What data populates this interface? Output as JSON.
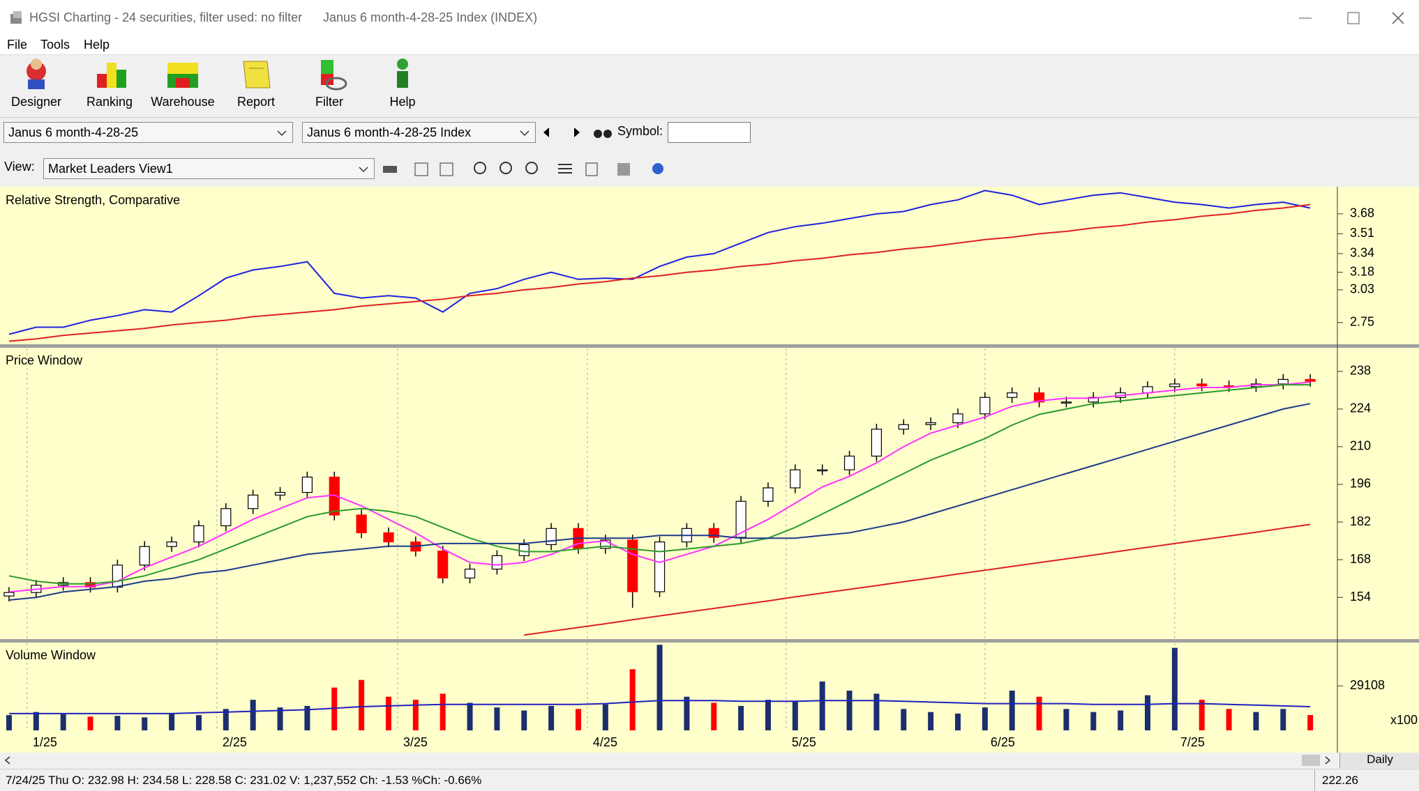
{
  "window": {
    "title": "HGSI Charting - 24 securities, filter used: no filter",
    "document": "Janus 6 month-4-28-25 Index (INDEX)"
  },
  "menu": [
    "File",
    "Tools",
    "Help"
  ],
  "toolbar": [
    "Designer",
    "Ranking",
    "Warehouse",
    "Report",
    "Filter",
    "Help"
  ],
  "selectors": {
    "list": "Janus 6 month-4-28-25",
    "index": "Janus 6 month-4-28-25 Index",
    "symbol_label": "Symbol:",
    "view_label": "View:",
    "view": "Market Leaders View1"
  },
  "status": {
    "text": "7/24/25 Thu O: 232.98 H: 234.58 L: 228.58 C: 231.02 V: 1,237,552 Ch: -1.53 %Ch: -0.66%",
    "price": "222.26",
    "period": "Daily"
  },
  "chart_data": [
    {
      "type": "line",
      "title": "Relative Strength, Comparative",
      "x": [
        1,
        4,
        7,
        10,
        13,
        16,
        19,
        22,
        25,
        28,
        31,
        34,
        37,
        40,
        43,
        46,
        49,
        52,
        55,
        58,
        61,
        64,
        67,
        70,
        73,
        76,
        79,
        82,
        85,
        88,
        91,
        94,
        97,
        100,
        103,
        106,
        109,
        112,
        115,
        118,
        121,
        124,
        127,
        130,
        133,
        136,
        139,
        142,
        145
      ],
      "xlim": [
        0,
        148
      ],
      "ylim": [
        2.57,
        3.9
      ],
      "yticks": [
        2.75,
        3.03,
        3.18,
        3.34,
        3.51,
        3.68
      ],
      "series": [
        {
          "color": "#2020e0",
          "values": [
            2.65,
            2.71,
            2.71,
            2.77,
            2.81,
            2.86,
            2.84,
            2.98,
            3.13,
            3.2,
            3.23,
            3.27,
            3.0,
            2.96,
            2.98,
            2.96,
            2.84,
            3.0,
            3.04,
            3.12,
            3.18,
            3.12,
            3.13,
            3.12,
            3.23,
            3.31,
            3.34,
            3.43,
            3.52,
            3.57,
            3.6,
            3.64,
            3.68,
            3.7,
            3.76,
            3.8,
            3.88,
            3.84,
            3.76,
            3.8,
            3.84,
            3.86,
            3.82,
            3.78,
            3.76,
            3.73,
            3.76,
            3.78,
            3.73
          ]
        },
        {
          "color": "#e02020",
          "values": [
            2.59,
            2.61,
            2.64,
            2.66,
            2.68,
            2.7,
            2.73,
            2.75,
            2.77,
            2.8,
            2.82,
            2.84,
            2.86,
            2.89,
            2.91,
            2.93,
            2.95,
            2.98,
            3.0,
            3.03,
            3.05,
            3.08,
            3.1,
            3.13,
            3.15,
            3.18,
            3.2,
            3.23,
            3.25,
            3.28,
            3.3,
            3.33,
            3.35,
            3.38,
            3.4,
            3.43,
            3.46,
            3.48,
            3.51,
            3.53,
            3.56,
            3.58,
            3.61,
            3.63,
            3.66,
            3.68,
            3.71,
            3.73,
            3.76
          ]
        }
      ]
    },
    {
      "type": "candlestick",
      "title": "Price Window",
      "x": [
        1,
        4,
        7,
        10,
        13,
        16,
        19,
        22,
        25,
        28,
        31,
        34,
        37,
        40,
        43,
        46,
        49,
        52,
        55,
        58,
        61,
        64,
        67,
        70,
        73,
        76,
        79,
        82,
        85,
        88,
        91,
        94,
        97,
        100,
        103,
        106,
        109,
        112,
        115,
        118,
        121,
        124,
        127,
        130,
        133,
        136,
        139,
        142,
        145
      ],
      "xlim": [
        0,
        148
      ],
      "ylim": [
        138.5,
        246.5
      ],
      "yticks": [
        154,
        168,
        182,
        196,
        210,
        224,
        238
      ],
      "xticks": [
        3,
        24,
        44,
        65,
        87,
        109,
        130
      ],
      "up_color": "#ffffff",
      "down_color": "#ff0000",
      "open": [
        154.5,
        155.8,
        158.5,
        159.5,
        157.8,
        166.0,
        172.9,
        174.6,
        180.6,
        187.0,
        192.0,
        193.0,
        198.7,
        184.6,
        178.0,
        174.6,
        171.2,
        161.2,
        164.5,
        169.5,
        173.6,
        179.6,
        172.2,
        175.3,
        156.1,
        174.6,
        179.6,
        176.3,
        189.7,
        194.7,
        201.4,
        201.4,
        206.5,
        216.5,
        218.2,
        218.9,
        222.2,
        228.3,
        230.0,
        226.6,
        226.6,
        228.3,
        230.0,
        232.3,
        233.3,
        232.6,
        232.3,
        233.3,
        235.0
      ],
      "high": [
        157.8,
        160.5,
        161.5,
        161.5,
        168.0,
        174.9,
        176.6,
        182.6,
        189.0,
        194.0,
        195.0,
        200.7,
        200.7,
        186.6,
        180.0,
        176.6,
        173.2,
        166.5,
        171.5,
        175.6,
        181.6,
        181.6,
        177.3,
        177.3,
        176.6,
        181.6,
        181.6,
        191.7,
        196.7,
        203.4,
        203.4,
        208.5,
        218.5,
        220.2,
        220.9,
        224.2,
        230.3,
        232.0,
        232.0,
        228.6,
        230.3,
        232.0,
        234.3,
        235.3,
        235.3,
        234.6,
        235.3,
        237.0,
        237.0
      ],
      "low": [
        152.5,
        153.8,
        156.5,
        155.8,
        155.8,
        164.0,
        170.9,
        172.6,
        178.6,
        185.0,
        190.0,
        191.0,
        182.6,
        176.0,
        172.6,
        169.2,
        159.2,
        159.2,
        162.5,
        167.5,
        171.6,
        170.2,
        170.2,
        150.1,
        154.1,
        172.6,
        174.3,
        174.3,
        187.7,
        192.7,
        199.4,
        199.4,
        204.5,
        214.5,
        216.2,
        216.9,
        220.2,
        226.3,
        224.6,
        224.6,
        224.6,
        226.3,
        228.0,
        230.3,
        230.6,
        230.3,
        230.3,
        231.3,
        232.3
      ],
      "close": [
        155.8,
        158.5,
        159.5,
        157.8,
        166.0,
        172.9,
        174.6,
        180.6,
        187.0,
        192.0,
        193.0,
        198.7,
        184.6,
        178.0,
        174.6,
        171.2,
        161.2,
        164.5,
        169.5,
        173.6,
        179.6,
        172.2,
        175.3,
        156.1,
        174.6,
        179.6,
        176.3,
        189.7,
        194.7,
        201.4,
        201.4,
        206.5,
        216.5,
        218.2,
        218.9,
        222.2,
        228.3,
        230.0,
        226.6,
        226.6,
        228.3,
        230.0,
        232.3,
        233.3,
        232.6,
        232.3,
        233.3,
        235.0,
        234.3
      ],
      "series": [
        {
          "color": "#ff30ff",
          "values": [
            156,
            157,
            158,
            158,
            160,
            165,
            169,
            173,
            178,
            183,
            187,
            191,
            192,
            188,
            183,
            178,
            172,
            167,
            166,
            167,
            170,
            174,
            175,
            170,
            167,
            170,
            173,
            178,
            183,
            189,
            195,
            199,
            204,
            210,
            215,
            218,
            221,
            225,
            227,
            228,
            228,
            229,
            230,
            231,
            232,
            232,
            233,
            233,
            234
          ]
        },
        {
          "color": "#2a9a2a",
          "values": [
            162,
            160,
            159,
            159,
            160,
            162,
            165,
            168,
            172,
            176,
            180,
            184,
            186,
            187,
            186,
            184,
            180,
            176,
            173,
            171,
            171,
            172,
            173,
            172,
            171,
            172,
            173,
            174,
            176,
            180,
            185,
            190,
            195,
            200,
            205,
            209,
            213,
            218,
            222,
            224,
            226,
            227,
            228,
            229,
            230,
            231,
            232,
            233,
            233
          ]
        },
        {
          "color": "#1a3a8a",
          "values": [
            153,
            154,
            156,
            157,
            158,
            160,
            161,
            163,
            164,
            166,
            168,
            170,
            171,
            172,
            173,
            173,
            174,
            174,
            174,
            174,
            175,
            176,
            176,
            176,
            177,
            177,
            177,
            176,
            176,
            176,
            177,
            178,
            180,
            182,
            185,
            188,
            191,
            194,
            197,
            200,
            203,
            206,
            209,
            212,
            215,
            218,
            221,
            224,
            226
          ]
        },
        {
          "color": "#e02020",
          "values": [
            null,
            null,
            null,
            null,
            null,
            null,
            null,
            null,
            null,
            null,
            null,
            null,
            null,
            null,
            null,
            null,
            null,
            null,
            null,
            140.0,
            141.4,
            142.8,
            144.2,
            145.7,
            147.1,
            148.5,
            149.9,
            151.3,
            152.7,
            154.2,
            155.6,
            157.0,
            158.4,
            159.8,
            161.2,
            162.7,
            164.1,
            165.5,
            166.9,
            168.3,
            169.7,
            171.2,
            172.6,
            174.0,
            175.4,
            176.8,
            178.2,
            179.7,
            181.1
          ]
        }
      ]
    },
    {
      "type": "bar",
      "title": "Volume Window",
      "ylabel": "x100",
      "x": [
        1,
        4,
        7,
        10,
        13,
        16,
        19,
        22,
        25,
        28,
        31,
        34,
        37,
        40,
        43,
        46,
        49,
        52,
        55,
        58,
        61,
        64,
        67,
        70,
        73,
        76,
        79,
        82,
        85,
        88,
        91,
        94,
        97,
        100,
        103,
        106,
        109,
        112,
        115,
        118,
        121,
        124,
        127,
        130,
        133,
        136,
        139,
        142,
        145
      ],
      "xlim": [
        0,
        148
      ],
      "ylim": [
        0,
        57000
      ],
      "yticks": [
        29108
      ],
      "xticks": [
        {
          "value": 3,
          "label": "1/25"
        },
        {
          "value": 24,
          "label": "2/25"
        },
        {
          "value": 44,
          "label": "3/25"
        },
        {
          "value": 65,
          "label": "4/25"
        },
        {
          "value": 87,
          "label": "5/25"
        },
        {
          "value": 109,
          "label": "6/25"
        },
        {
          "value": 130,
          "label": "7/25"
        }
      ],
      "values": [
        10000,
        12000,
        10500,
        9000,
        9500,
        8500,
        11000,
        10000,
        14000,
        20000,
        15000,
        16000,
        28000,
        33000,
        22000,
        20000,
        24000,
        18000,
        15000,
        13000,
        16000,
        14000,
        17000,
        40000,
        56000,
        22000,
        18000,
        16000,
        20000,
        19000,
        32000,
        26000,
        24000,
        14000,
        12000,
        11000,
        15000,
        26000,
        22000,
        14000,
        12000,
        13000,
        23000,
        54000,
        20000,
        14000,
        12000,
        14000,
        10000
      ],
      "colors": [
        "#1b2f6e",
        "#1b2f6e",
        "#1b2f6e",
        "#ff0000",
        "#1b2f6e",
        "#1b2f6e",
        "#1b2f6e",
        "#1b2f6e",
        "#1b2f6e",
        "#1b2f6e",
        "#1b2f6e",
        "#1b2f6e",
        "#ff0000",
        "#ff0000",
        "#ff0000",
        "#ff0000",
        "#ff0000",
        "#1b2f6e",
        "#1b2f6e",
        "#1b2f6e",
        "#1b2f6e",
        "#ff0000",
        "#1b2f6e",
        "#ff0000",
        "#1b2f6e",
        "#1b2f6e",
        "#ff0000",
        "#1b2f6e",
        "#1b2f6e",
        "#1b2f6e",
        "#1b2f6e",
        "#1b2f6e",
        "#1b2f6e",
        "#1b2f6e",
        "#1b2f6e",
        "#1b2f6e",
        "#1b2f6e",
        "#1b2f6e",
        "#ff0000",
        "#1b2f6e",
        "#1b2f6e",
        "#1b2f6e",
        "#1b2f6e",
        "#1b2f6e",
        "#ff0000",
        "#ff0000",
        "#1b2f6e",
        "#1b2f6e",
        "#ff0000"
      ],
      "series": [
        {
          "color": "#2020c0",
          "values": [
            11000,
            11000,
            11000,
            11000,
            11000,
            11000,
            11000,
            11500,
            12000,
            12500,
            13000,
            13500,
            14500,
            15500,
            16000,
            16500,
            17000,
            17000,
            17000,
            17000,
            17000,
            17000,
            17500,
            18500,
            19500,
            19500,
            19500,
            19000,
            19000,
            19000,
            19500,
            19500,
            19500,
            19000,
            18500,
            18000,
            17500,
            17500,
            17500,
            17500,
            17000,
            17000,
            17000,
            17500,
            17500,
            17000,
            16500,
            16000,
            15500
          ]
        }
      ]
    }
  ]
}
